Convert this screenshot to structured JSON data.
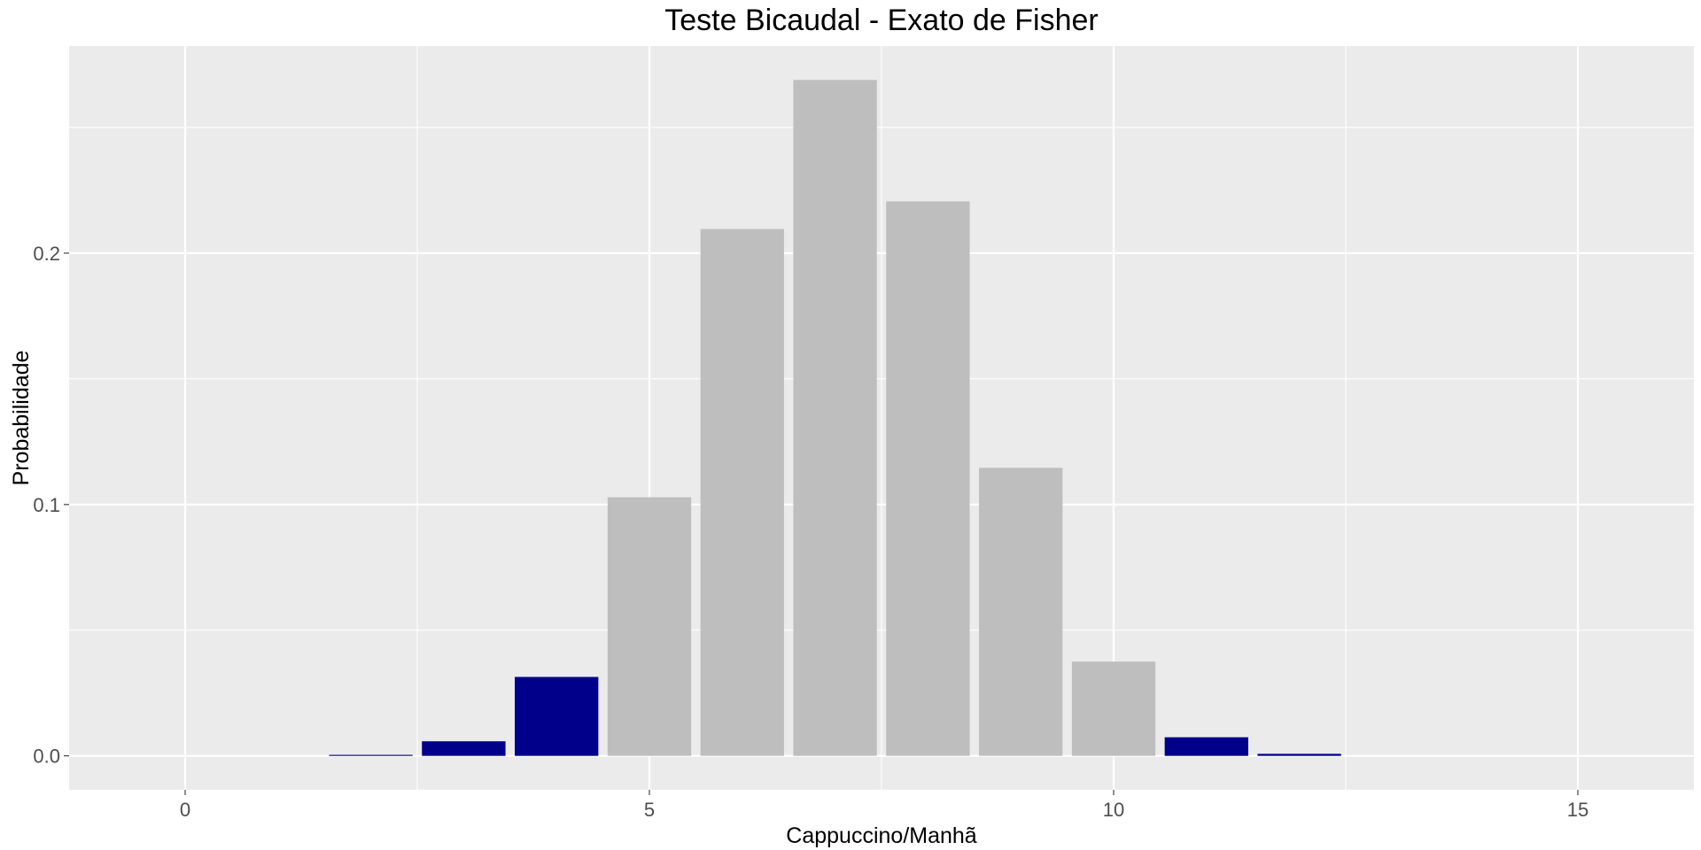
{
  "chart_data": {
    "type": "bar",
    "title": "Teste Bicaudal - Exato de Fisher",
    "xlabel": "Cappuccino/Manhã",
    "ylabel": "Probabilidade",
    "x": [
      2,
      3,
      4,
      5,
      6,
      7,
      8,
      9,
      10,
      11,
      12
    ],
    "values": [
      0.0004,
      0.0058,
      0.0314,
      0.1029,
      0.2096,
      0.2689,
      0.2206,
      0.1146,
      0.0375,
      0.0074,
      0.0008
    ],
    "bar_colors": [
      "#00008B",
      "#00008B",
      "#00008B",
      "#BEBEBE",
      "#BEBEBE",
      "#BEBEBE",
      "#BEBEBE",
      "#BEBEBE",
      "#BEBEBE",
      "#00008B",
      "#00008B"
    ],
    "xlim": [
      -1.25,
      16.25
    ],
    "ylim": [
      -0.0135,
      0.2824
    ],
    "xticks": [
      0,
      5,
      10,
      15
    ],
    "xtick_labels": [
      "0",
      "5",
      "10",
      "15"
    ],
    "yticks": [
      0.0,
      0.1,
      0.2
    ],
    "ytick_labels": [
      "0.0",
      "0.1",
      "0.2"
    ],
    "grid": true,
    "legend": "none",
    "colors": {
      "panel_background": "#EBEBEB",
      "grid": "#FFFFFF",
      "highlight": "#00008B",
      "neutral": "#BEBEBE"
    }
  }
}
